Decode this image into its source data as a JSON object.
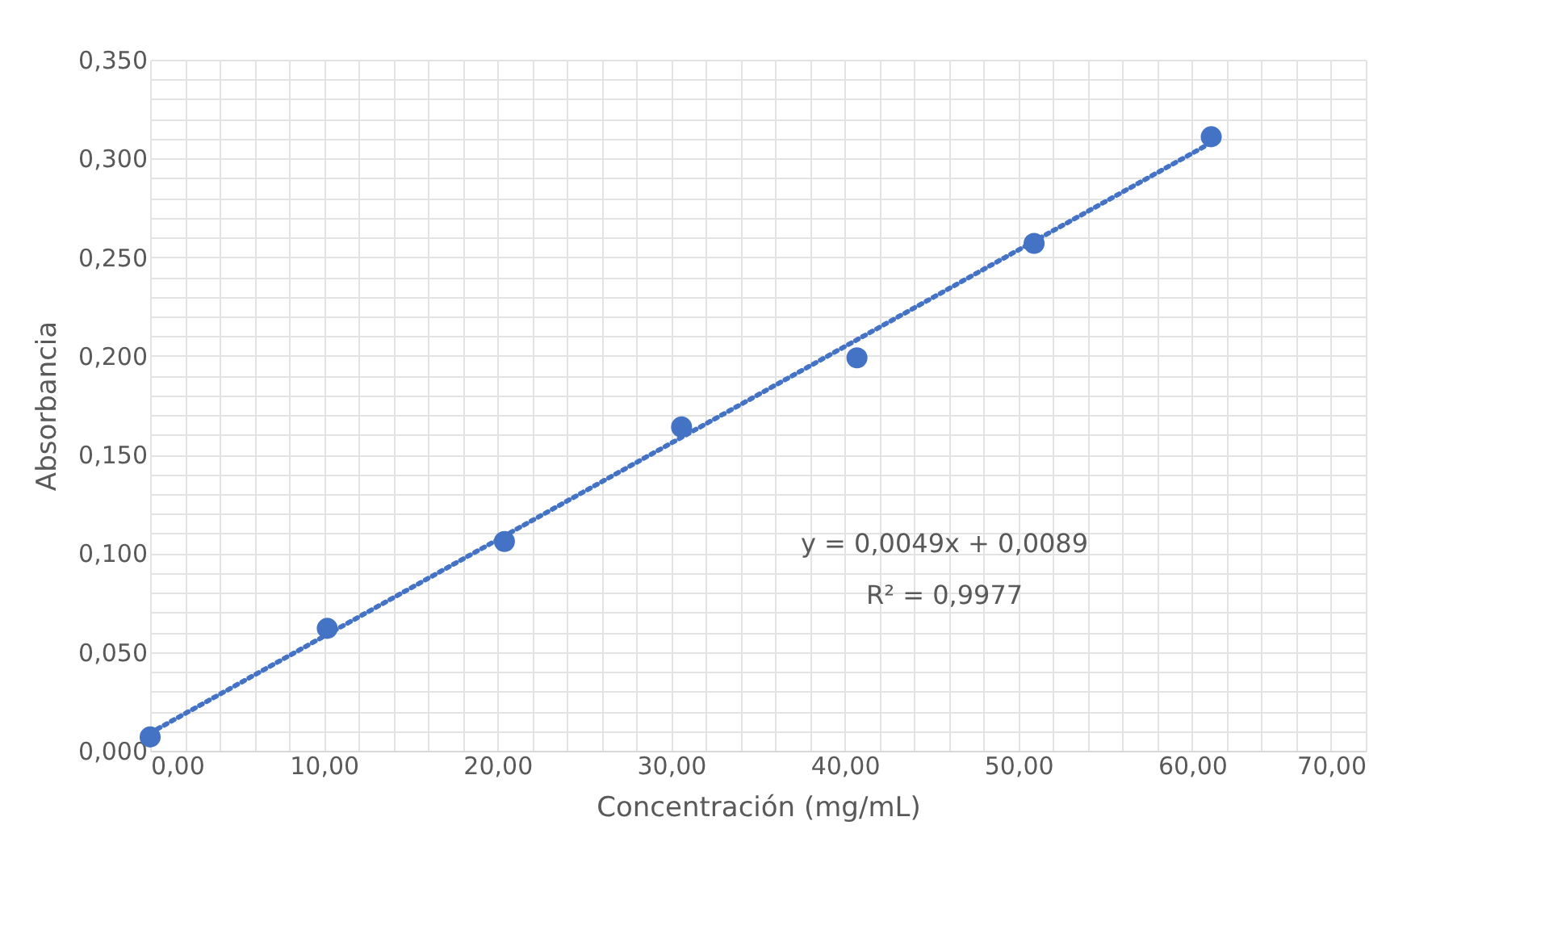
{
  "chart_data": {
    "type": "scatter",
    "xlabel": "Concentración (mg/mL)",
    "ylabel": "Absorbancia",
    "annotations": [
      "y = 0,0049x + 0,0089",
      "R² = 0,9977"
    ],
    "series": [
      {
        "color": "#4472c4",
        "marker": "circle",
        "x": [
          0,
          10.2,
          20.4,
          30.6,
          40.7,
          50.9,
          61.1
        ],
        "values": [
          0.007,
          0.062,
          0.106,
          0.164,
          0.199,
          0.257,
          0.311
        ]
      },
      {
        "type": "line",
        "color": "#4472c4",
        "line_style": "dotted",
        "marker": "none",
        "x": [
          0,
          61.1
        ],
        "values": [
          0.009,
          0.308
        ]
      }
    ],
    "xlim": [
      0,
      70
    ],
    "ylim": [
      0,
      0.35
    ],
    "xticks": [
      {
        "value": 0,
        "label": "0,00"
      },
      {
        "value": 2,
        "label": null
      },
      {
        "value": 4,
        "label": null
      },
      {
        "value": 6,
        "label": null
      },
      {
        "value": 8,
        "label": null
      },
      {
        "value": 10,
        "label": "10,00"
      },
      {
        "value": 12,
        "label": null
      },
      {
        "value": 14,
        "label": null
      },
      {
        "value": 16,
        "label": null
      },
      {
        "value": 18,
        "label": null
      },
      {
        "value": 20,
        "label": "20,00"
      },
      {
        "value": 22,
        "label": null
      },
      {
        "value": 24,
        "label": null
      },
      {
        "value": 26,
        "label": null
      },
      {
        "value": 28,
        "label": null
      },
      {
        "value": 30,
        "label": "30,00"
      },
      {
        "value": 32,
        "label": null
      },
      {
        "value": 34,
        "label": null
      },
      {
        "value": 36,
        "label": null
      },
      {
        "value": 38,
        "label": null
      },
      {
        "value": 40,
        "label": "40,00"
      },
      {
        "value": 42,
        "label": null
      },
      {
        "value": 44,
        "label": null
      },
      {
        "value": 46,
        "label": null
      },
      {
        "value": 48,
        "label": null
      },
      {
        "value": 50,
        "label": "50,00"
      },
      {
        "value": 52,
        "label": null
      },
      {
        "value": 54,
        "label": null
      },
      {
        "value": 56,
        "label": null
      },
      {
        "value": 58,
        "label": null
      },
      {
        "value": 60,
        "label": "60,00"
      },
      {
        "value": 62,
        "label": null
      },
      {
        "value": 64,
        "label": null
      },
      {
        "value": 66,
        "label": null
      },
      {
        "value": 68,
        "label": null
      },
      {
        "value": 70,
        "label": "70,00"
      }
    ],
    "yticks": [
      {
        "value": 0,
        "label": "0,000"
      },
      {
        "value": 0.01,
        "label": null
      },
      {
        "value": 0.02,
        "label": null
      },
      {
        "value": 0.03,
        "label": null
      },
      {
        "value": 0.04,
        "label": null
      },
      {
        "value": 0.05,
        "label": "0,050"
      },
      {
        "value": 0.06,
        "label": null
      },
      {
        "value": 0.07,
        "label": null
      },
      {
        "value": 0.08,
        "label": null
      },
      {
        "value": 0.09,
        "label": null
      },
      {
        "value": 0.1,
        "label": "0,100"
      },
      {
        "value": 0.11,
        "label": null
      },
      {
        "value": 0.12,
        "label": null
      },
      {
        "value": 0.13,
        "label": null
      },
      {
        "value": 0.14,
        "label": null
      },
      {
        "value": 0.15,
        "label": "0,150"
      },
      {
        "value": 0.16,
        "label": null
      },
      {
        "value": 0.17,
        "label": null
      },
      {
        "value": 0.18,
        "label": null
      },
      {
        "value": 0.19,
        "label": null
      },
      {
        "value": 0.2,
        "label": "0,200"
      },
      {
        "value": 0.21,
        "label": null
      },
      {
        "value": 0.22,
        "label": null
      },
      {
        "value": 0.23,
        "label": null
      },
      {
        "value": 0.24,
        "label": null
      },
      {
        "value": 0.25,
        "label": "0,250"
      },
      {
        "value": 0.26,
        "label": null
      },
      {
        "value": 0.27,
        "label": null
      },
      {
        "value": 0.28,
        "label": null
      },
      {
        "value": 0.29,
        "label": null
      },
      {
        "value": 0.3,
        "label": "0,300"
      },
      {
        "value": 0.31,
        "label": null
      },
      {
        "value": 0.32,
        "label": null
      },
      {
        "value": 0.33,
        "label": null
      },
      {
        "value": 0.34,
        "label": null
      },
      {
        "value": 0.35,
        "label": "0,350"
      }
    ],
    "grid": true
  }
}
